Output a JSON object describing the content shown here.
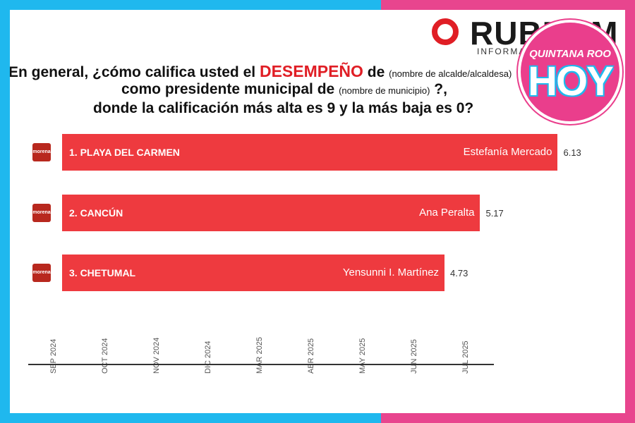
{
  "logo": {
    "word": "RUBRUM",
    "sub": "INFORMACIÓN Y PODER"
  },
  "badge": {
    "top": "QUINTANA ROO",
    "main": "HOY"
  },
  "question": {
    "l1a": "En general, ¿cómo califica usted el ",
    "l1b": "DESEMPEÑO",
    "l1c": " de ",
    "l1d": "(nombre de alcalde/alcaldesa)",
    "l2a": "como presidente municipal de ",
    "l2b": "(nombre de municipio)",
    "l2c": " ?, ",
    "l3": "donde la calificación más alta es 9 y la más baja es 0?"
  },
  "chart_data": {
    "type": "bar",
    "orientation": "horizontal",
    "categories": [
      "1. PLAYA DEL CARMEN",
      "2. CANCÚN",
      "3. CHETUMAL"
    ],
    "names": [
      "Estefanía Mercado",
      "Ana Peralta",
      "Yensunni I. Martínez"
    ],
    "party": "morena",
    "values": [
      6.13,
      5.17,
      4.73
    ],
    "value_labels": [
      "6.13",
      "5.17",
      "4.73"
    ],
    "xticks": [
      "SEP 2024",
      "OCT 2024",
      "NOV 2024",
      "DIC 2024",
      "MAR 2025",
      "ABR 2025",
      "MAY 2025",
      "JUN 2025",
      "JUL 2025"
    ],
    "bar_color": "#ee3a3f"
  }
}
